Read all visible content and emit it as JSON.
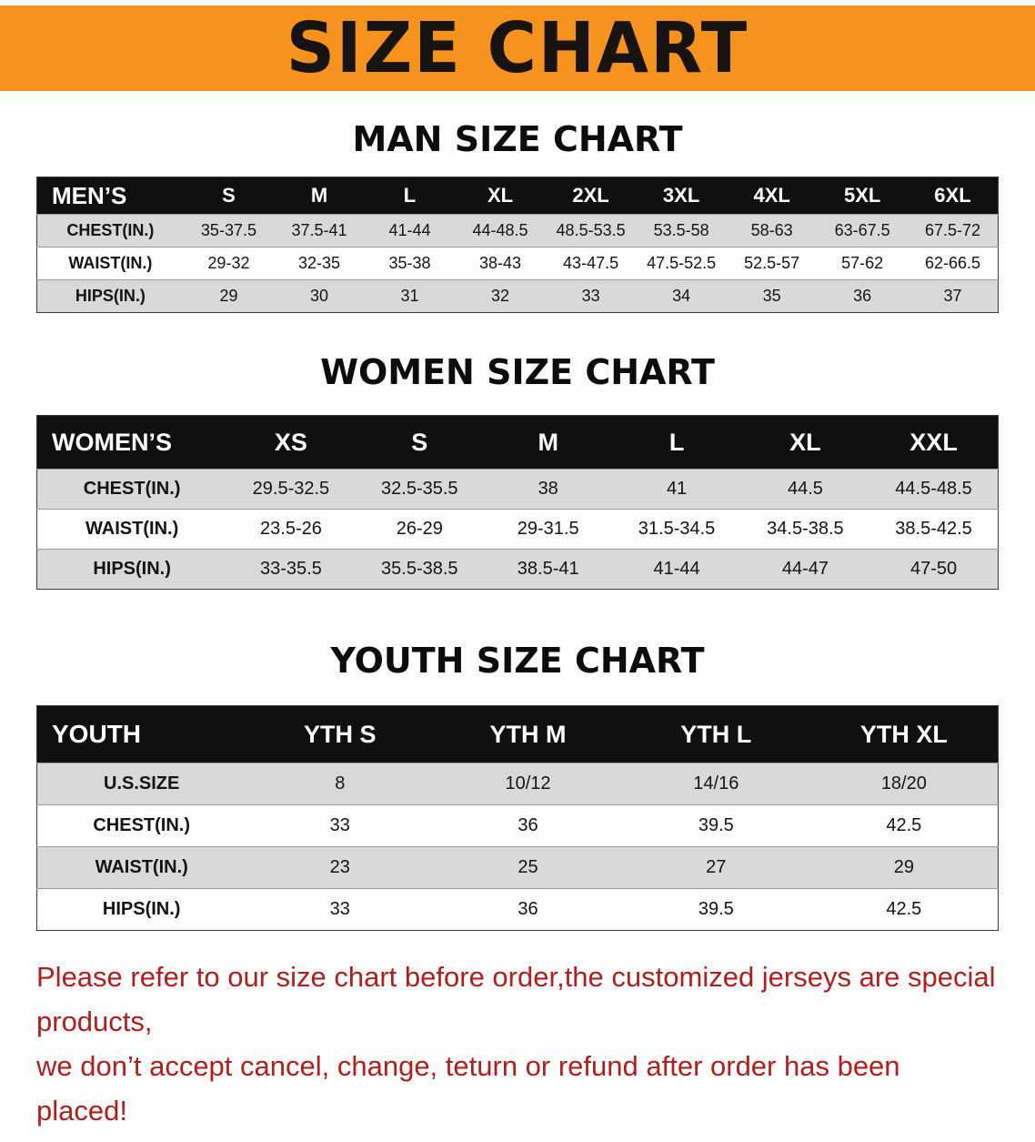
{
  "banner": {
    "title": "SIZE CHART",
    "bg_color": "#F6921E",
    "text_color": "#161310"
  },
  "colors": {
    "table_header_bg": "#101010",
    "table_header_text": "#FFFFFF",
    "row_shade": "#D9D9D9",
    "row_plain": "#FDFDFD",
    "disclaimer_red": "#B01E1E"
  },
  "sections": [
    {
      "heading": "MAN SIZE CHART",
      "table": {
        "header_label": "MEN’S",
        "columns": [
          "S",
          "M",
          "L",
          "XL",
          "2XL",
          "3XL",
          "4XL",
          "5XL",
          "6XL"
        ],
        "rows": [
          {
            "label": "CHEST(IN.)",
            "values": [
              "35-37.5",
              "37.5-41",
              "41-44",
              "44-48.5",
              "48.5-53.5",
              "53.5-58",
              "58-63",
              "63-67.5",
              "67.5-72"
            ]
          },
          {
            "label": "WAIST(IN.)",
            "values": [
              "29-32",
              "32-35",
              "35-38",
              "38-43",
              "43-47.5",
              "47.5-52.5",
              "52.5-57",
              "57-62",
              "62-66.5"
            ]
          },
          {
            "label": "HIPS(IN.)",
            "values": [
              "29",
              "30",
              "31",
              "32",
              "33",
              "34",
              "35",
              "36",
              "37"
            ]
          }
        ]
      }
    },
    {
      "heading": "WOMEN SIZE CHART",
      "table": {
        "header_label": "WOMEN’S",
        "columns": [
          "XS",
          "S",
          "M",
          "L",
          "XL",
          "XXL"
        ],
        "rows": [
          {
            "label": "CHEST(IN.)",
            "values": [
              "29.5-32.5",
              "32.5-35.5",
              "38",
              "41",
              "44.5",
              "44.5-48.5"
            ]
          },
          {
            "label": "WAIST(IN.)",
            "values": [
              "23.5-26",
              "26-29",
              "29-31.5",
              "31.5-34.5",
              "34.5-38.5",
              "38.5-42.5"
            ]
          },
          {
            "label": "HIPS(IN.)",
            "values": [
              "33-35.5",
              "35.5-38.5",
              "38.5-41",
              "41-44",
              "44-47",
              "47-50"
            ]
          }
        ]
      }
    },
    {
      "heading": "YOUTH SIZE CHART",
      "table": {
        "header_label": "YOUTH",
        "columns": [
          "YTH S",
          "YTH M",
          "YTH L",
          "YTH XL"
        ],
        "rows": [
          {
            "label": "U.S.SIZE",
            "values": [
              "8",
              "10/12",
              "14/16",
              "18/20"
            ]
          },
          {
            "label": "CHEST(IN.)",
            "values": [
              "33",
              "36",
              "39.5",
              "42.5"
            ]
          },
          {
            "label": "WAIST(IN.)",
            "values": [
              "23",
              "25",
              "27",
              "29"
            ]
          },
          {
            "label": "HIPS(IN.)",
            "values": [
              "33",
              "36",
              "39.5",
              "42.5"
            ]
          }
        ]
      }
    }
  ],
  "footer": {
    "lines": [
      "Please refer to our size chart before order,the customized jerseys are special products,",
      "we don’t accept cancel, change, teturn or refund after order has been placed!"
    ]
  }
}
